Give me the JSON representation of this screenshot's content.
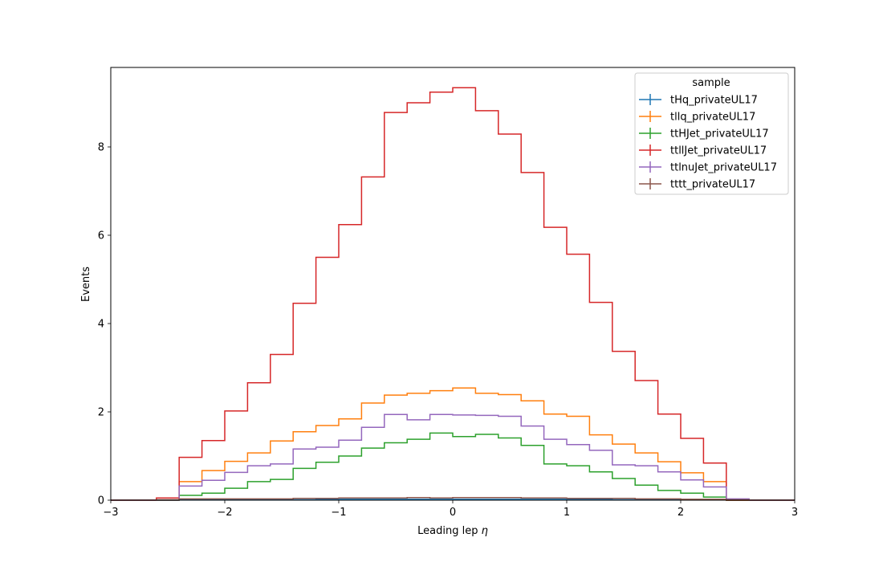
{
  "chart_data": {
    "type": "line",
    "drawstyle": "step",
    "xlabel": "Leading lep",
    "xlabel_symbol": "η",
    "ylabel": "Events",
    "xlim": [
      -3,
      3
    ],
    "ylim": [
      0,
      9.8
    ],
    "xticks": [
      -3,
      -2,
      -1,
      0,
      1,
      2,
      3
    ],
    "xtick_labels": [
      "−3",
      "−2",
      "−1",
      "0",
      "1",
      "2",
      "3"
    ],
    "yticks": [
      0,
      2,
      4,
      6,
      8
    ],
    "ytick_labels": [
      "0",
      "2",
      "4",
      "6",
      "8"
    ],
    "grid": false,
    "legend": {
      "title": "sample",
      "placement": "top-right"
    },
    "bin_edges": [
      -3.0,
      -2.8,
      -2.6,
      -2.4,
      -2.2,
      -2.0,
      -1.8,
      -1.6,
      -1.4,
      -1.2,
      -1.0,
      -0.8,
      -0.6,
      -0.4,
      -0.2,
      0.0,
      0.2,
      0.4,
      0.6,
      0.8,
      1.0,
      1.2,
      1.4,
      1.6,
      1.8,
      2.0,
      2.2,
      2.4,
      2.6,
      2.8,
      3.0
    ],
    "series": [
      {
        "name": "tHq_privateUL17",
        "color": "#1f77b4",
        "values": [
          0,
          0,
          0,
          0.01,
          0.01,
          0.01,
          0.01,
          0.01,
          0.01,
          0.02,
          0.02,
          0.02,
          0.02,
          0.02,
          0.02,
          0.02,
          0.02,
          0.02,
          0.02,
          0.02,
          0.02,
          0.02,
          0.01,
          0.01,
          0.01,
          0.01,
          0.01,
          0,
          0,
          0
        ]
      },
      {
        "name": "tllq_privateUL17",
        "color": "#ff7f0e",
        "values": [
          0,
          0,
          0,
          0.42,
          0.67,
          0.88,
          1.07,
          1.34,
          1.55,
          1.69,
          1.84,
          2.2,
          2.38,
          2.42,
          2.48,
          2.54,
          2.42,
          2.39,
          2.25,
          1.95,
          1.9,
          1.48,
          1.27,
          1.07,
          0.87,
          0.62,
          0.42,
          0,
          0,
          0
        ]
      },
      {
        "name": "ttHJet_privateUL17",
        "color": "#2ca02c",
        "values": [
          0,
          0,
          0,
          0.11,
          0.16,
          0.27,
          0.42,
          0.47,
          0.72,
          0.86,
          1.0,
          1.18,
          1.3,
          1.38,
          1.52,
          1.44,
          1.49,
          1.41,
          1.24,
          0.82,
          0.78,
          0.64,
          0.49,
          0.34,
          0.22,
          0.16,
          0.07,
          0,
          0,
          0
        ]
      },
      {
        "name": "ttllJet_privateUL17",
        "color": "#d62728",
        "values": [
          0,
          0,
          0.05,
          0.97,
          1.35,
          2.02,
          2.66,
          3.3,
          4.46,
          5.5,
          6.24,
          7.32,
          8.78,
          9.0,
          9.24,
          9.34,
          8.82,
          8.29,
          7.42,
          6.18,
          5.57,
          4.48,
          3.37,
          2.71,
          1.95,
          1.4,
          0.84,
          0,
          0,
          0
        ]
      },
      {
        "name": "ttlnuJet_privateUL17",
        "color": "#9467bd",
        "values": [
          0,
          0,
          0,
          0.32,
          0.45,
          0.63,
          0.78,
          0.82,
          1.16,
          1.2,
          1.36,
          1.65,
          1.94,
          1.82,
          1.94,
          1.93,
          1.92,
          1.9,
          1.68,
          1.38,
          1.26,
          1.13,
          0.8,
          0.78,
          0.64,
          0.46,
          0.3,
          0.03,
          0,
          0
        ]
      },
      {
        "name": "tttt_privateUL17",
        "color": "#8c564b",
        "values": [
          0,
          0,
          0.01,
          0.03,
          0.03,
          0.03,
          0.03,
          0.03,
          0.04,
          0.04,
          0.05,
          0.05,
          0.05,
          0.06,
          0.05,
          0.06,
          0.06,
          0.06,
          0.05,
          0.05,
          0.04,
          0.04,
          0.04,
          0.03,
          0.03,
          0.02,
          0.02,
          0.01,
          0,
          0
        ]
      }
    ]
  }
}
